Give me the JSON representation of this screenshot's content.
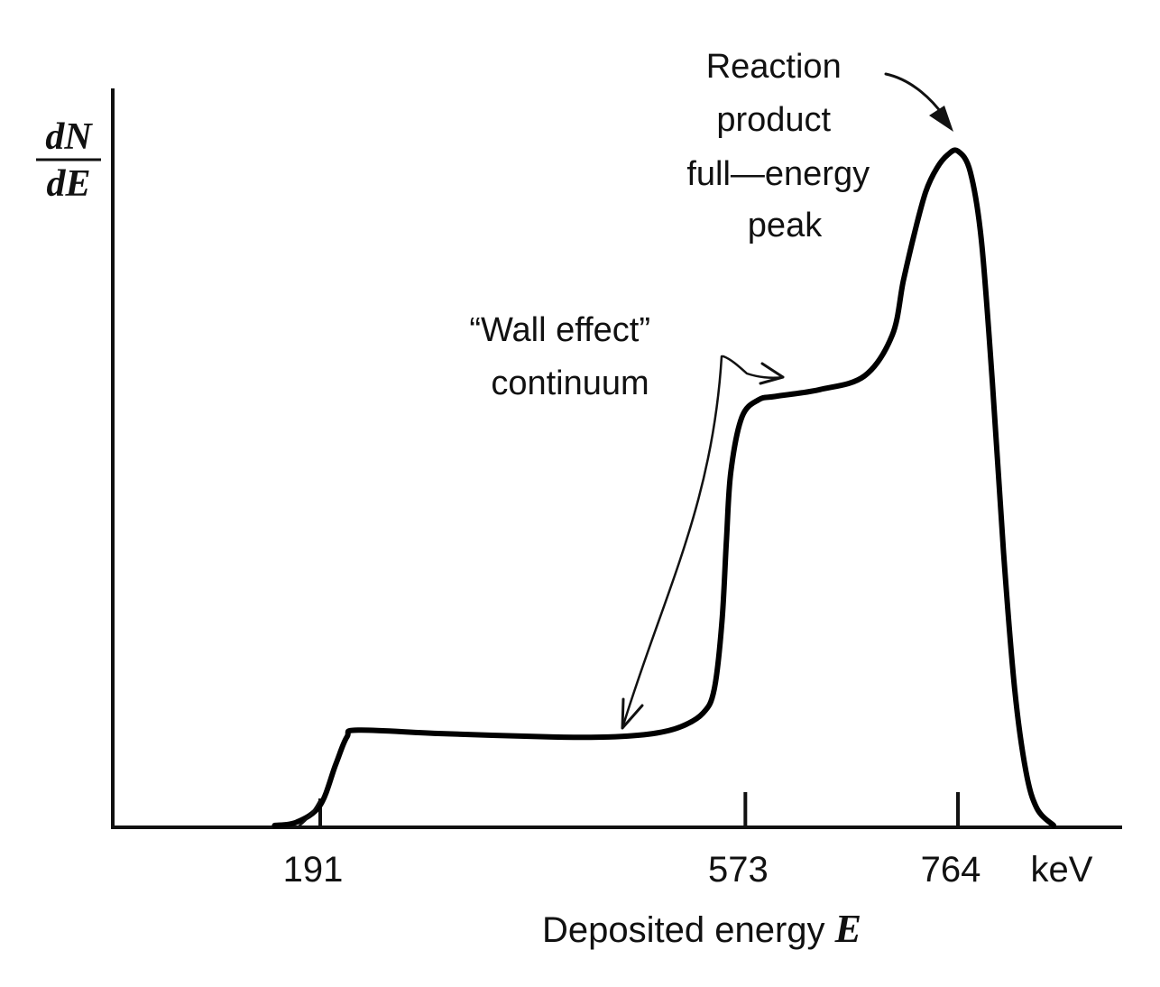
{
  "chart_data": {
    "type": "line",
    "title": "",
    "ylabel": {
      "numerator": "dN",
      "denominator": "dE"
    },
    "xlabel": {
      "text": "Deposited energy",
      "symbol": "E"
    },
    "x_unit": "keV",
    "x_ticks": [
      191,
      573,
      764
    ],
    "y_ticks": [],
    "xlim": [
      0,
      900
    ],
    "grid": false,
    "series": [
      {
        "values_note_free": true,
        "x": [
          150,
          170,
          191,
          205,
          215,
          225,
          300,
          400,
          450,
          490,
          515,
          535,
          545,
          552,
          556,
          560,
          570,
          585,
          600,
          640,
          680,
          705,
          715,
          725,
          735,
          745,
          755,
          764,
          775,
          785,
          795,
          805,
          815,
          825,
          835,
          850
        ],
        "y": [
          0,
          0.005,
          0.03,
          0.09,
          0.13,
          0.14,
          0.135,
          0.13,
          0.13,
          0.135,
          0.145,
          0.165,
          0.2,
          0.3,
          0.42,
          0.52,
          0.6,
          0.625,
          0.63,
          0.64,
          0.66,
          0.72,
          0.8,
          0.87,
          0.93,
          0.965,
          0.985,
          0.99,
          0.96,
          0.86,
          0.65,
          0.4,
          0.2,
          0.08,
          0.025,
          0
        ]
      }
    ],
    "annotations": [
      {
        "lines": [
          "Reaction",
          "product",
          "full—energy",
          "peak"
        ]
      },
      {
        "lines": [
          "“Wall  effect”",
          "continuum"
        ]
      }
    ]
  }
}
